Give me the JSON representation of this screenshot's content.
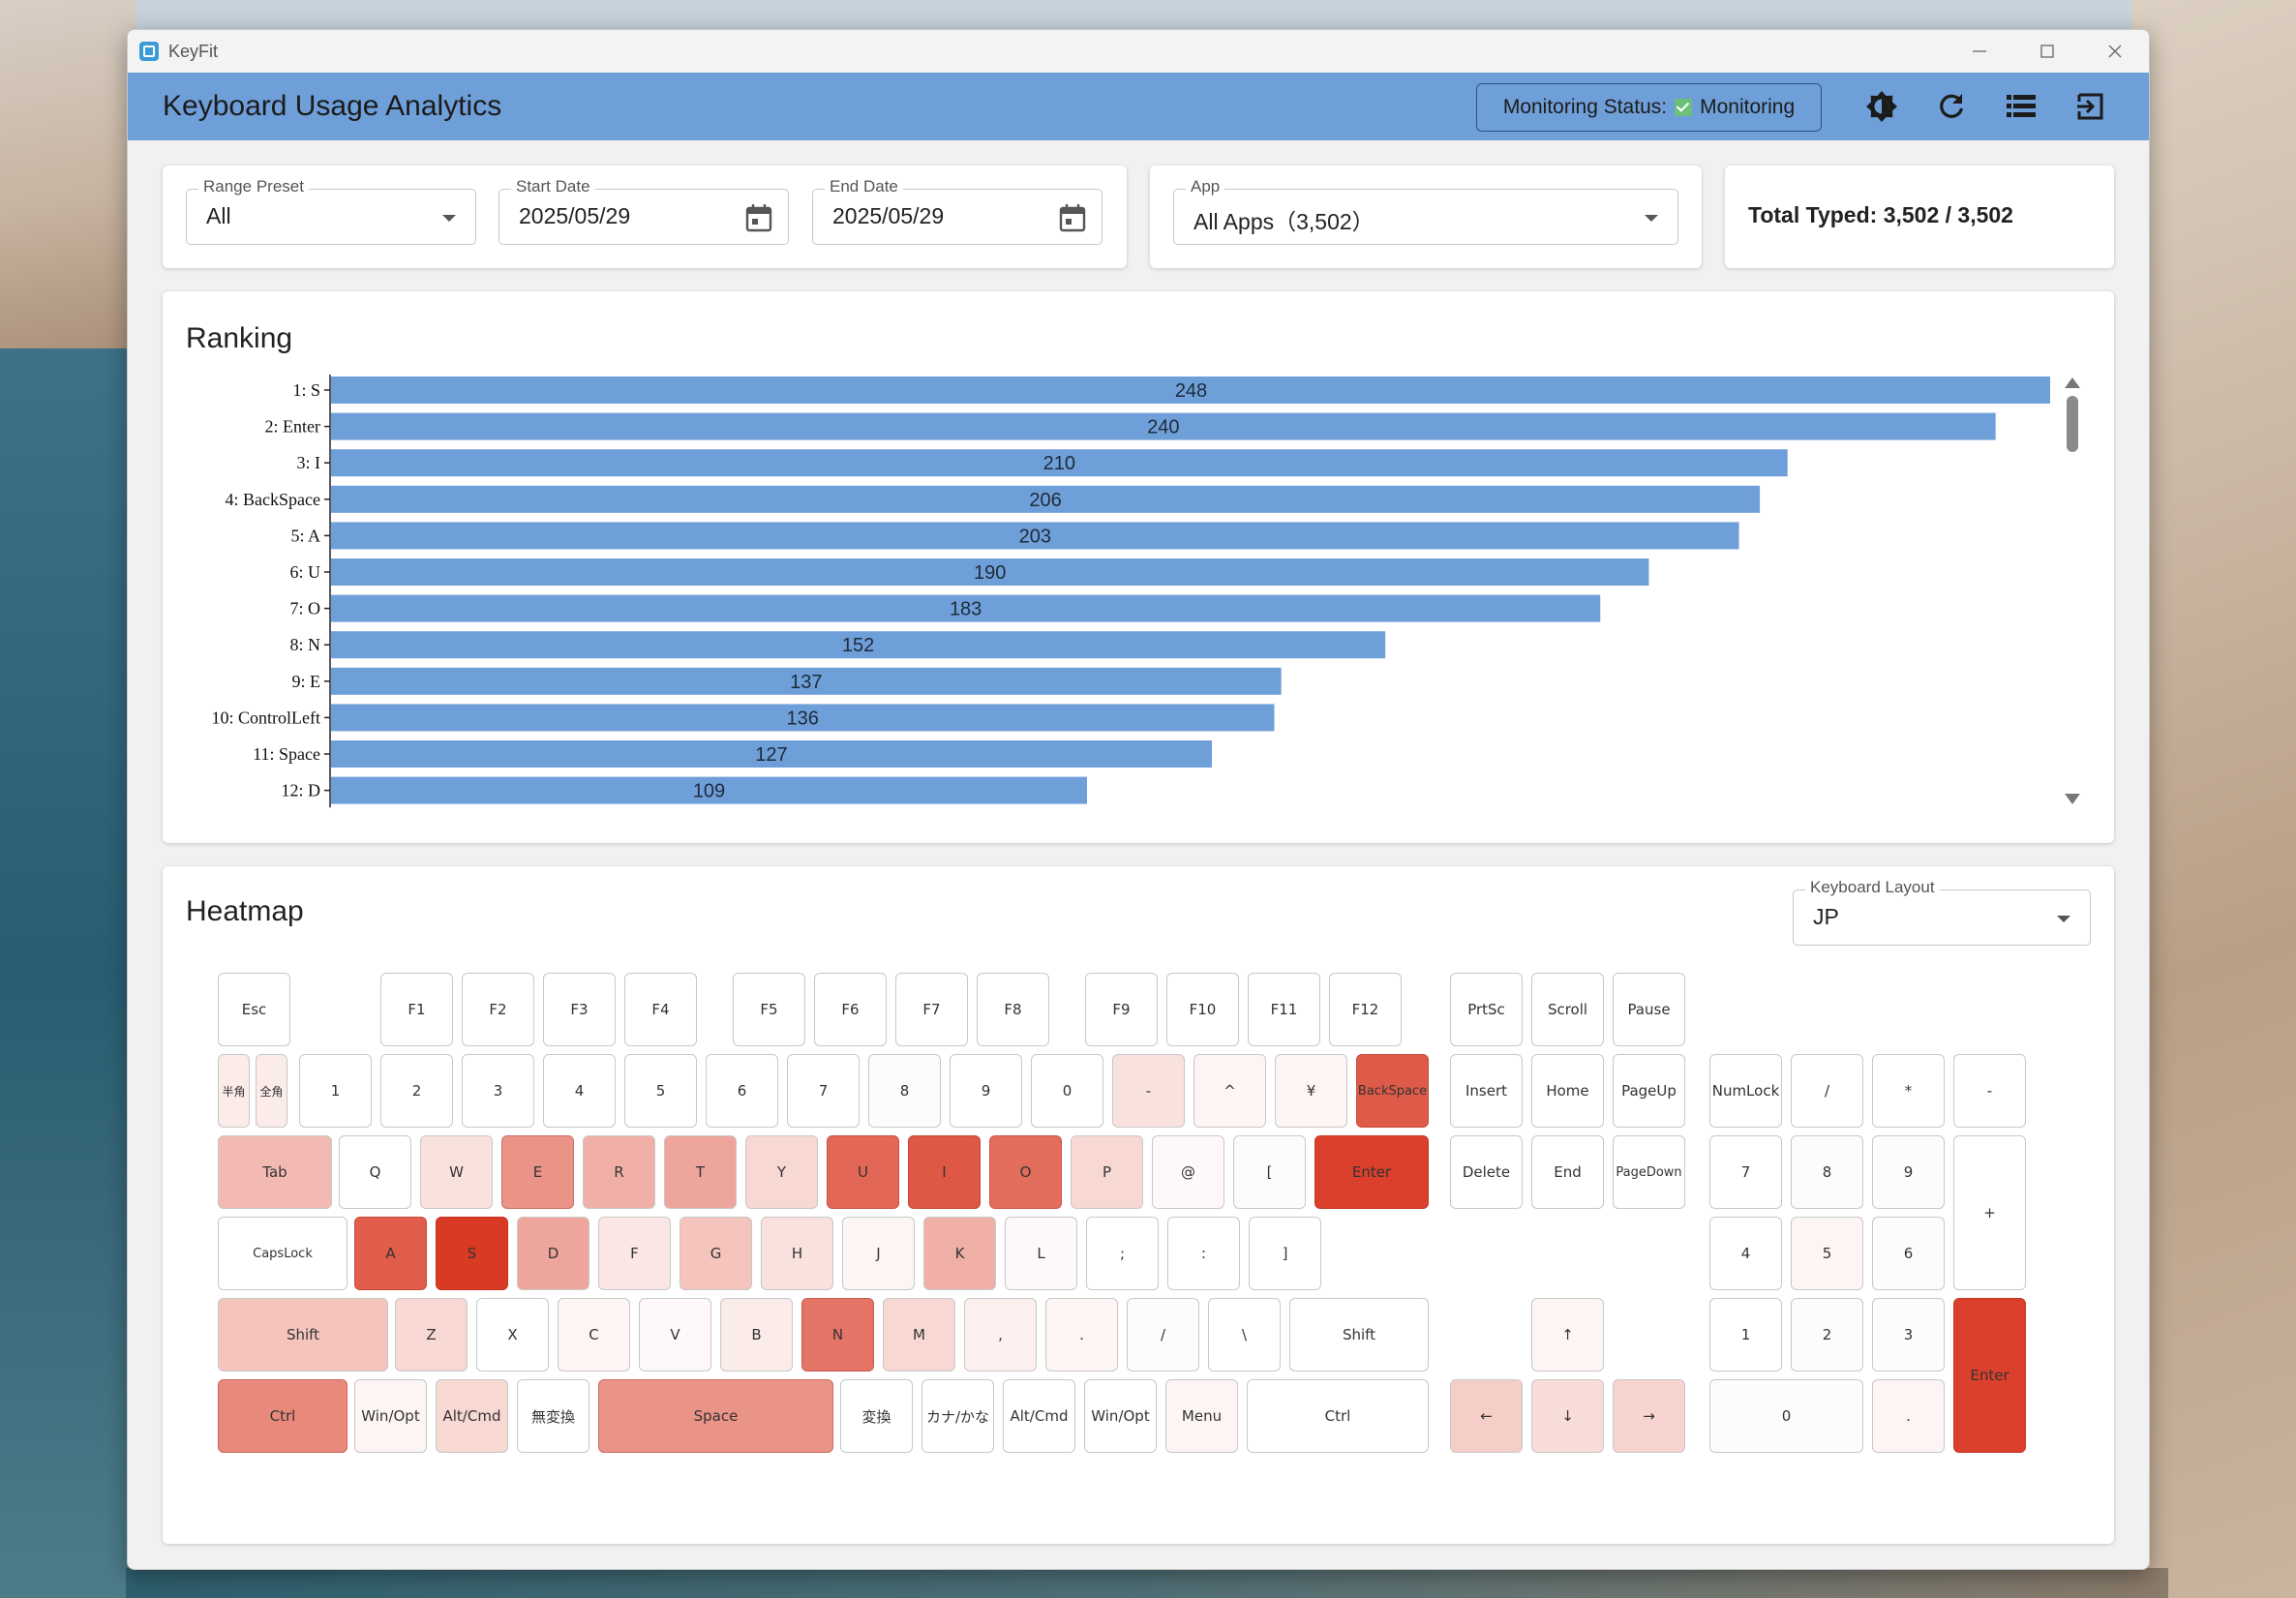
{
  "window": {
    "title": "KeyFit"
  },
  "appbar": {
    "title": "Keyboard Usage Analytics",
    "status_label": "Monitoring Status:",
    "status_value": "Monitoring",
    "icons": [
      "theme-toggle-icon",
      "refresh-icon",
      "list-icon",
      "logout-icon"
    ]
  },
  "filters": {
    "range_preset": {
      "label": "Range Preset",
      "value": "All"
    },
    "start_date": {
      "label": "Start Date",
      "value": "2025/05/29"
    },
    "end_date": {
      "label": "End Date",
      "value": "2025/05/29"
    },
    "app": {
      "label": "App",
      "value": "All Apps（3,502）"
    }
  },
  "total": {
    "text": "Total Typed: 3,502 / 3,502"
  },
  "ranking": {
    "title": "Ranking",
    "chart_data": {
      "type": "bar",
      "orientation": "horizontal",
      "categories": [
        "1: S",
        "2: Enter",
        "3: I",
        "4: BackSpace",
        "5: A",
        "6: U",
        "7: O",
        "8: N",
        "9: E",
        "10: ControlLeft",
        "11: Space",
        "12: D"
      ],
      "values": [
        248,
        240,
        210,
        206,
        203,
        190,
        183,
        152,
        137,
        136,
        127,
        109
      ],
      "xlim": [
        0,
        248
      ],
      "color": "#6f9fd8"
    }
  },
  "heatmap": {
    "title": "Heatmap",
    "layout_select": {
      "label": "Keyboard Layout",
      "value": "JP"
    },
    "colors": {
      "low": "#ffffff",
      "high": "#d93a24"
    },
    "keys": {
      "esc": {
        "label": "Esc",
        "level": 0
      },
      "f1": {
        "label": "F1",
        "level": 0
      },
      "f2": {
        "label": "F2",
        "level": 0
      },
      "f3": {
        "label": "F3",
        "level": 0
      },
      "f4": {
        "label": "F4",
        "level": 0
      },
      "f5": {
        "label": "F5",
        "level": 0
      },
      "f6": {
        "label": "F6",
        "level": 0
      },
      "f7": {
        "label": "F7",
        "level": 0
      },
      "f8": {
        "label": "F8",
        "level": 0
      },
      "f9": {
        "label": "F9",
        "level": 0
      },
      "f10": {
        "label": "F10",
        "level": 0
      },
      "f11": {
        "label": "F11",
        "level": 0
      },
      "f12": {
        "label": "F12",
        "level": 0
      },
      "prtsc": {
        "label": "PrtSc",
        "level": 0
      },
      "scroll": {
        "label": "Scroll",
        "level": 0
      },
      "pause": {
        "label": "Pause",
        "level": 0
      },
      "hankaku": {
        "label": "半角",
        "level": 0.1
      },
      "zenkaku": {
        "label": "全角",
        "level": 0.1
      },
      "d1": {
        "label": "1",
        "level": 0
      },
      "d2": {
        "label": "2",
        "level": 0
      },
      "d3": {
        "label": "3",
        "level": 0
      },
      "d4": {
        "label": "4",
        "level": 0
      },
      "d5": {
        "label": "5",
        "level": 0
      },
      "d6": {
        "label": "6",
        "level": 0
      },
      "d7": {
        "label": "7",
        "level": 0
      },
      "d8": {
        "label": "8",
        "level": 0.02
      },
      "d9": {
        "label": "9",
        "level": 0
      },
      "d0": {
        "label": "0",
        "level": 0
      },
      "minus": {
        "label": "-",
        "level": 0.15
      },
      "caret": {
        "label": "^",
        "level": 0.05
      },
      "yen": {
        "label": "¥",
        "level": 0.05
      },
      "backspace": {
        "label": "BackSpace",
        "level": 0.83
      },
      "insert": {
        "label": "Insert",
        "level": 0
      },
      "home": {
        "label": "Home",
        "level": 0
      },
      "pageup": {
        "label": "PageUp",
        "level": 0
      },
      "numlock": {
        "label": "NumLock",
        "level": 0
      },
      "np_slash": {
        "label": "/",
        "level": 0
      },
      "np_star": {
        "label": "*",
        "level": 0
      },
      "np_minus": {
        "label": "-",
        "level": 0
      },
      "tab": {
        "label": "Tab",
        "level": 0.35
      },
      "q": {
        "label": "Q",
        "level": 0
      },
      "w": {
        "label": "W",
        "level": 0.15
      },
      "e": {
        "label": "E",
        "level": 0.55
      },
      "r": {
        "label": "R",
        "level": 0.4
      },
      "t": {
        "label": "T",
        "level": 0.45
      },
      "y": {
        "label": "Y",
        "level": 0.2
      },
      "u": {
        "label": "U",
        "level": 0.77
      },
      "i": {
        "label": "I",
        "level": 0.85
      },
      "o": {
        "label": "O",
        "level": 0.74
      },
      "p": {
        "label": "P",
        "level": 0.2
      },
      "at": {
        "label": "@",
        "level": 0.03
      },
      "lbracket": {
        "label": "[",
        "level": 0.02
      },
      "enter": {
        "label": "Enter",
        "level": 0.97
      },
      "delete": {
        "label": "Delete",
        "level": 0
      },
      "end": {
        "label": "End",
        "level": 0
      },
      "pagedown": {
        "label": "PageDown",
        "level": 0
      },
      "np7": {
        "label": "7",
        "level": 0
      },
      "np8": {
        "label": "8",
        "level": 0.02
      },
      "np9": {
        "label": "9",
        "level": 0.02
      },
      "np_plus": {
        "label": "+",
        "level": 0
      },
      "capslock": {
        "label": "CapsLock",
        "level": 0
      },
      "a": {
        "label": "A",
        "level": 0.82
      },
      "s": {
        "label": "S",
        "level": 1.0
      },
      "d": {
        "label": "D",
        "level": 0.45
      },
      "f": {
        "label": "F",
        "level": 0.12
      },
      "g": {
        "label": "G",
        "level": 0.3
      },
      "h": {
        "label": "H",
        "level": 0.15
      },
      "j": {
        "label": "J",
        "level": 0.05
      },
      "k": {
        "label": "K",
        "level": 0.4
      },
      "l": {
        "label": "L",
        "level": 0.03
      },
      "semicolon": {
        "label": ";",
        "level": 0
      },
      "colon": {
        "label": ":",
        "level": 0
      },
      "rbracket": {
        "label": "]",
        "level": 0
      },
      "np4": {
        "label": "4",
        "level": 0
      },
      "np5": {
        "label": "5",
        "level": 0.05
      },
      "np6": {
        "label": "6",
        "level": 0.02
      },
      "lshift": {
        "label": "Shift",
        "level": 0.3
      },
      "z": {
        "label": "Z",
        "level": 0.2
      },
      "x": {
        "label": "X",
        "level": 0
      },
      "c": {
        "label": "C",
        "level": 0.05
      },
      "v": {
        "label": "V",
        "level": 0.03
      },
      "b": {
        "label": "B",
        "level": 0.1
      },
      "n": {
        "label": "N",
        "level": 0.7
      },
      "m": {
        "label": "M",
        "level": 0.2
      },
      "comma": {
        "label": ",",
        "level": 0.08
      },
      "period": {
        "label": ".",
        "level": 0.05
      },
      "slash": {
        "label": "/",
        "level": 0.02
      },
      "backslash": {
        "label": "\\",
        "level": 0
      },
      "rshift": {
        "label": "Shift",
        "level": 0
      },
      "up": {
        "label": "↑",
        "level": 0.05
      },
      "np1": {
        "label": "1",
        "level": 0
      },
      "np2": {
        "label": "2",
        "level": 0.02
      },
      "np3": {
        "label": "3",
        "level": 0.02
      },
      "np_enter": {
        "label": "Enter",
        "level": 0.97
      },
      "lctrl": {
        "label": "Ctrl",
        "level": 0.6
      },
      "lwin": {
        "label": "Win/Opt",
        "level": 0.05
      },
      "lalt": {
        "label": "Alt/Cmd",
        "level": 0.2
      },
      "muhenkan": {
        "label": "無変換",
        "level": 0
      },
      "space": {
        "label": "Space",
        "level": 0.55
      },
      "henkan": {
        "label": "変換",
        "level": 0
      },
      "kana": {
        "label": "カナ/かな",
        "level": 0
      },
      "ralt": {
        "label": "Alt/Cmd",
        "level": 0
      },
      "rwin": {
        "label": "Win/Opt",
        "level": 0
      },
      "menu": {
        "label": "Menu",
        "level": 0.05
      },
      "rctrl": {
        "label": "Ctrl",
        "level": 0
      },
      "left": {
        "label": "←",
        "level": 0.25
      },
      "down": {
        "label": "↓",
        "level": 0.18
      },
      "right": {
        "label": "→",
        "level": 0.22
      },
      "np0": {
        "label": "0",
        "level": 0.02
      },
      "np_dot": {
        "label": ".",
        "level": 0.05
      }
    }
  }
}
